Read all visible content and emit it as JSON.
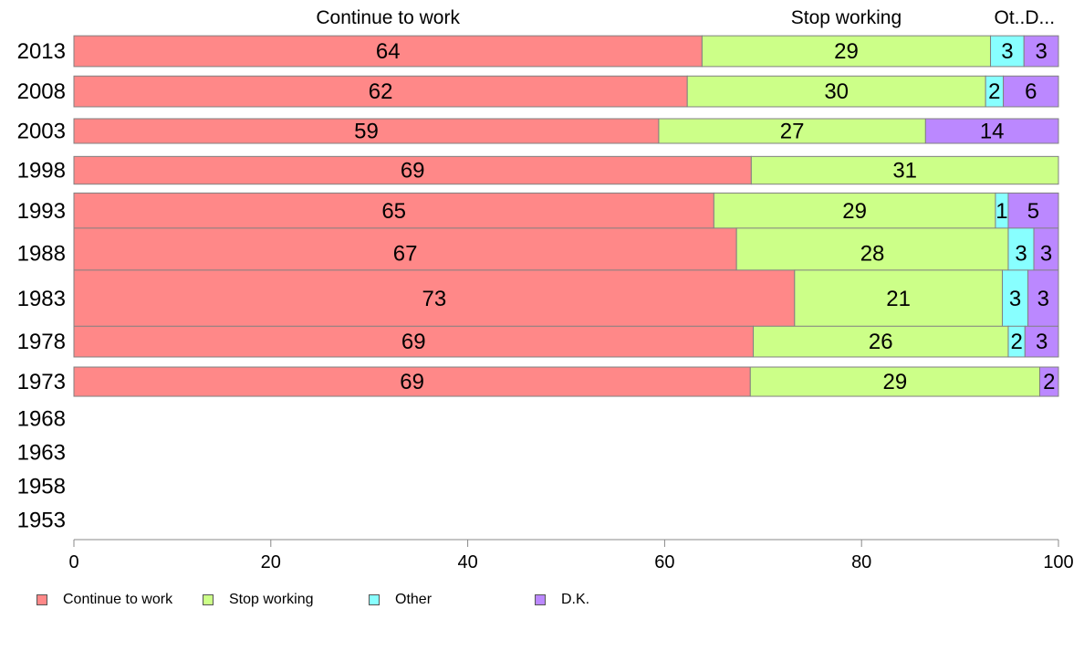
{
  "chart_data": {
    "type": "bar",
    "orientation": "horizontal",
    "stacked": true,
    "categories": [
      "2013",
      "2008",
      "2003",
      "1998",
      "1993",
      "1988",
      "1983",
      "1978",
      "1973",
      "1968",
      "1963",
      "1958",
      "1953"
    ],
    "series": [
      {
        "name": "Continue to work",
        "color": "#ff8888",
        "values": [
          63.8,
          62.3,
          59.4,
          68.8,
          65.0,
          67.3,
          73.2,
          69.0,
          68.7,
          null,
          null,
          null,
          null
        ],
        "labels": [
          "64",
          "62",
          "59",
          "69",
          "65",
          "67",
          "73",
          "69",
          "69",
          "",
          "",
          "",
          ""
        ]
      },
      {
        "name": "Stop working",
        "color": "#ccff88",
        "values": [
          29.3,
          30.3,
          27.1,
          31.2,
          28.6,
          27.6,
          21.1,
          25.9,
          29.4,
          null,
          null,
          null,
          null
        ],
        "labels": [
          "29",
          "30",
          "27",
          "31",
          "29",
          "28",
          "21",
          "26",
          "29",
          "",
          "",
          "",
          ""
        ]
      },
      {
        "name": "Other",
        "color": "#88ffff",
        "values": [
          3.4,
          1.8,
          0,
          0,
          1.3,
          2.6,
          2.6,
          1.7,
          0,
          null,
          null,
          null,
          null
        ],
        "labels": [
          "3",
          "2",
          "",
          "",
          "1",
          "3",
          "3",
          "2",
          "",
          "",
          "",
          "",
          ""
        ]
      },
      {
        "name": "D.K.",
        "color": "#bb88ff",
        "values": [
          3.5,
          5.6,
          13.5,
          0,
          5.1,
          2.5,
          3.1,
          3.4,
          1.9,
          null,
          null,
          null,
          null
        ],
        "labels": [
          "3",
          "6",
          "14",
          "",
          "5",
          "3",
          "3",
          "3",
          "2",
          "",
          "",
          "",
          ""
        ]
      }
    ],
    "relative_bar_heights": [
      1,
      1,
      0.8,
      0.9,
      1.15,
      1.65,
      1.85,
      1.0,
      0.95,
      0,
      0,
      0,
      0
    ],
    "top_labels": [
      "Continue to work",
      "Stop working",
      "Ot..D..."
    ],
    "xlim": [
      0,
      100
    ],
    "xticks": [
      0,
      20,
      40,
      60,
      80,
      100
    ],
    "legend_position": "bottom-left",
    "grid": false
  },
  "legend": {
    "items": [
      {
        "label": "Continue to work",
        "color": "#ff8888"
      },
      {
        "label": "Stop working",
        "color": "#ccff88"
      },
      {
        "label": "Other",
        "color": "#88ffff"
      },
      {
        "label": "D.K.",
        "color": "#bb88ff"
      }
    ]
  }
}
